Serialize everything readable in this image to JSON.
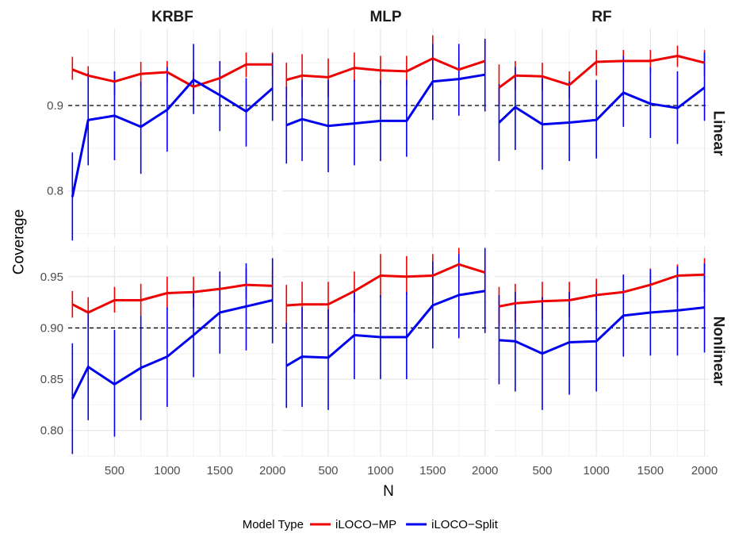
{
  "chart_data": {
    "type": "line",
    "xlabel": "N",
    "ylabel": "Coverage",
    "x": [
      100,
      250,
      500,
      750,
      1000,
      1250,
      1500,
      1750,
      2000
    ],
    "x_ticks": [
      500,
      1000,
      1500,
      2000
    ],
    "reference_line": 0.9,
    "columns": [
      "KRBF",
      "MLP",
      "RF"
    ],
    "rows": [
      {
        "label": "Linear",
        "ylim": [
          0.745,
          0.99
        ],
        "y_ticks": [
          {
            "v": 0.8,
            "t": "0.8"
          },
          {
            "v": 0.9,
            "t": "0.9"
          }
        ],
        "panels": [
          {
            "column": "KRBF",
            "series": [
              {
                "name": "iLOCO−MP",
                "values": [
                  0.942,
                  0.935,
                  0.928,
                  0.937,
                  0.939,
                  0.922,
                  0.932,
                  0.948,
                  0.948
                ],
                "lower": [
                  0.93,
                  0.925,
                  0.912,
                  0.922,
                  0.926,
                  0.906,
                  0.916,
                  0.933,
                  0.934
                ],
                "upper": [
                  0.957,
                  0.946,
                  0.94,
                  0.951,
                  0.952,
                  0.94,
                  0.95,
                  0.962,
                  0.962
                ]
              },
              {
                "name": "iLOCO−Split",
                "values": [
                  0.793,
                  0.883,
                  0.888,
                  0.875,
                  0.895,
                  0.93,
                  0.912,
                  0.893,
                  0.92
                ],
                "lower": [
                  0.742,
                  0.83,
                  0.836,
                  0.82,
                  0.846,
                  0.89,
                  0.87,
                  0.852,
                  0.882
                ],
                "upper": [
                  0.845,
                  0.938,
                  0.94,
                  0.928,
                  0.945,
                  0.972,
                  0.952,
                  0.932,
                  0.96
                ]
              }
            ]
          },
          {
            "column": "MLP",
            "series": [
              {
                "name": "iLOCO−MP",
                "values": [
                  0.93,
                  0.935,
                  0.933,
                  0.944,
                  0.941,
                  0.94,
                  0.955,
                  0.942,
                  0.952
                ],
                "lower": [
                  0.908,
                  0.91,
                  0.91,
                  0.928,
                  0.925,
                  0.923,
                  0.935,
                  0.928,
                  0.935
                ],
                "upper": [
                  0.95,
                  0.96,
                  0.955,
                  0.962,
                  0.958,
                  0.958,
                  0.982,
                  0.96,
                  0.975
                ]
              },
              {
                "name": "iLOCO−Split",
                "values": [
                  0.877,
                  0.884,
                  0.876,
                  0.879,
                  0.882,
                  0.882,
                  0.928,
                  0.931,
                  0.936
                ],
                "lower": [
                  0.832,
                  0.835,
                  0.822,
                  0.83,
                  0.835,
                  0.84,
                  0.883,
                  0.888,
                  0.893
                ],
                "upper": [
                  0.922,
                  0.93,
                  0.93,
                  0.93,
                  0.93,
                  0.93,
                  0.972,
                  0.972,
                  0.978
                ]
              }
            ]
          },
          {
            "column": "RF",
            "series": [
              {
                "name": "iLOCO−MP",
                "values": [
                  0.921,
                  0.935,
                  0.934,
                  0.924,
                  0.951,
                  0.952,
                  0.952,
                  0.958,
                  0.95
                ],
                "lower": [
                  0.9,
                  0.918,
                  0.918,
                  0.908,
                  0.935,
                  0.938,
                  0.938,
                  0.945,
                  0.935
                ],
                "upper": [
                  0.948,
                  0.952,
                  0.95,
                  0.94,
                  0.965,
                  0.965,
                  0.965,
                  0.97,
                  0.965
                ]
              },
              {
                "name": "iLOCO−Split",
                "values": [
                  0.88,
                  0.898,
                  0.878,
                  0.88,
                  0.883,
                  0.915,
                  0.902,
                  0.897,
                  0.921
                ],
                "lower": [
                  0.835,
                  0.848,
                  0.825,
                  0.835,
                  0.838,
                  0.875,
                  0.862,
                  0.855,
                  0.882
                ],
                "upper": [
                  0.925,
                  0.945,
                  0.932,
                  0.928,
                  0.93,
                  0.958,
                  0.945,
                  0.94,
                  0.962
                ]
              }
            ]
          }
        ]
      },
      {
        "label": "Nonlinear",
        "ylim": [
          0.775,
          0.98
        ],
        "y_ticks": [
          {
            "v": 0.8,
            "t": "0.80"
          },
          {
            "v": 0.85,
            "t": "0.85"
          },
          {
            "v": 0.9,
            "t": "0.90"
          },
          {
            "v": 0.95,
            "t": "0.95"
          }
        ],
        "panels": [
          {
            "column": "KRBF",
            "series": [
              {
                "name": "iLOCO−MP",
                "values": [
                  0.923,
                  0.915,
                  0.927,
                  0.927,
                  0.934,
                  0.935,
                  0.938,
                  0.942,
                  0.941
                ],
                "lower": [
                  0.91,
                  0.9,
                  0.915,
                  0.912,
                  0.918,
                  0.92,
                  0.922,
                  0.928,
                  0.926
                ],
                "upper": [
                  0.936,
                  0.93,
                  0.94,
                  0.943,
                  0.95,
                  0.95,
                  0.955,
                  0.958,
                  0.957
                ]
              },
              {
                "name": "iLOCO−Split",
                "values": [
                  0.831,
                  0.862,
                  0.845,
                  0.861,
                  0.872,
                  0.893,
                  0.915,
                  0.921,
                  0.927
                ],
                "lower": [
                  0.777,
                  0.81,
                  0.794,
                  0.81,
                  0.823,
                  0.852,
                  0.875,
                  0.878,
                  0.885
                ],
                "upper": [
                  0.885,
                  0.915,
                  0.898,
                  0.912,
                  0.92,
                  0.935,
                  0.955,
                  0.963,
                  0.968
                ]
              }
            ]
          },
          {
            "column": "MLP",
            "series": [
              {
                "name": "iLOCO−MP",
                "values": [
                  0.922,
                  0.923,
                  0.923,
                  0.936,
                  0.951,
                  0.95,
                  0.951,
                  0.962,
                  0.954
                ],
                "lower": [
                  0.9,
                  0.9,
                  0.9,
                  0.915,
                  0.93,
                  0.932,
                  0.932,
                  0.945,
                  0.935
                ],
                "upper": [
                  0.942,
                  0.945,
                  0.945,
                  0.955,
                  0.972,
                  0.97,
                  0.972,
                  0.978,
                  0.972
                ]
              },
              {
                "name": "iLOCO−Split",
                "values": [
                  0.863,
                  0.872,
                  0.871,
                  0.893,
                  0.891,
                  0.891,
                  0.922,
                  0.932,
                  0.936
                ],
                "lower": [
                  0.822,
                  0.823,
                  0.82,
                  0.85,
                  0.85,
                  0.85,
                  0.88,
                  0.89,
                  0.895
                ],
                "upper": [
                  0.905,
                  0.92,
                  0.918,
                  0.935,
                  0.932,
                  0.935,
                  0.965,
                  0.972,
                  0.978
                ]
              }
            ]
          },
          {
            "column": "RF",
            "series": [
              {
                "name": "iLOCO−MP",
                "values": [
                  0.921,
                  0.924,
                  0.926,
                  0.927,
                  0.932,
                  0.935,
                  0.942,
                  0.951,
                  0.952
                ],
                "lower": [
                  0.902,
                  0.905,
                  0.908,
                  0.91,
                  0.916,
                  0.918,
                  0.925,
                  0.935,
                  0.935
                ],
                "upper": [
                  0.94,
                  0.943,
                  0.945,
                  0.945,
                  0.948,
                  0.952,
                  0.958,
                  0.962,
                  0.968
                ]
              },
              {
                "name": "iLOCO−Split",
                "values": [
                  0.888,
                  0.887,
                  0.875,
                  0.886,
                  0.887,
                  0.912,
                  0.915,
                  0.917,
                  0.92
                ],
                "lower": [
                  0.845,
                  0.838,
                  0.82,
                  0.835,
                  0.838,
                  0.872,
                  0.873,
                  0.873,
                  0.876
                ],
                "upper": [
                  0.932,
                  0.935,
                  0.93,
                  0.935,
                  0.935,
                  0.952,
                  0.957,
                  0.96,
                  0.963
                ]
              }
            ]
          }
        ]
      }
    ],
    "legend": {
      "title": "Model Type",
      "position": "bottom",
      "entries": [
        {
          "name": "iLOCO−MP",
          "color": "#ee0000"
        },
        {
          "name": "iLOCO−Split",
          "color": "#0000ee"
        }
      ]
    },
    "grid": true
  }
}
